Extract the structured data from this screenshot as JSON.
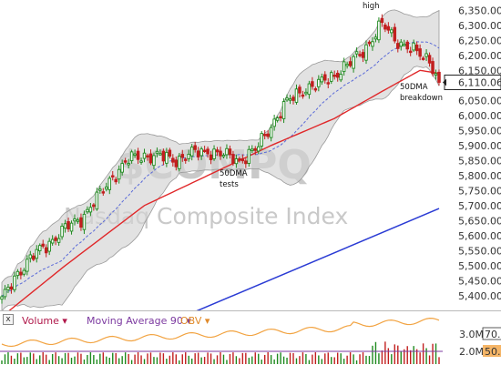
{
  "chart_data": {
    "type": "candlestick",
    "title": "$COMPQ",
    "subtitle": "Nasdaq Composite Index",
    "ylim": [
      5360,
      6360
    ],
    "y_ticks": [
      "6,350.00",
      "6,300.00",
      "6,250.00",
      "6,200.00",
      "6,150.00",
      "6,100.00",
      "6,050.00",
      "6,000.00",
      "5,950.00",
      "5,900.00",
      "5,850.00",
      "5,800.00",
      "5,750.00",
      "5,700.00",
      "5,650.00",
      "5,600.00",
      "5,550.00",
      "5,500.00",
      "5,450.00",
      "5,400.00"
    ],
    "last_price_label": "6,110.06",
    "last_price": 6110.06,
    "annotations": [
      {
        "id": "high",
        "text": "high"
      },
      {
        "id": "tests",
        "lines": [
          "50DMA",
          "tests"
        ]
      },
      {
        "id": "breakdown",
        "lines": [
          "50DMA",
          "breakdown"
        ]
      }
    ],
    "anchors": [
      [
        0,
        5380
      ],
      [
        5,
        5480
      ],
      [
        10,
        5530
      ],
      [
        15,
        5580
      ],
      [
        20,
        5620
      ],
      [
        25,
        5660
      ],
      [
        30,
        5720
      ],
      [
        35,
        5800
      ],
      [
        40,
        5850
      ],
      [
        45,
        5870
      ],
      [
        50,
        5860
      ],
      [
        55,
        5855
      ],
      [
        60,
        5870
      ],
      [
        65,
        5885
      ],
      [
        70,
        5865
      ],
      [
        75,
        5855
      ],
      [
        80,
        5880
      ],
      [
        85,
        5970
      ],
      [
        90,
        6040
      ],
      [
        95,
        6090
      ],
      [
        100,
        6100
      ],
      [
        105,
        6140
      ],
      [
        110,
        6170
      ],
      [
        115,
        6230
      ],
      [
        120,
        6300
      ],
      [
        125,
        6250
      ],
      [
        130,
        6210
      ],
      [
        135,
        6190
      ],
      [
        138,
        6110.06
      ]
    ],
    "ma20_ends": [
      5460,
      6230
    ],
    "ma50": [
      [
        0,
        5330
      ],
      [
        20,
        5500
      ],
      [
        45,
        5700
      ],
      [
        65,
        5800
      ],
      [
        85,
        5900
      ],
      [
        105,
        5990
      ],
      [
        120,
        6080
      ],
      [
        132,
        6150
      ],
      [
        138,
        6140
      ]
    ],
    "ma200": [
      [
        55,
        5320
      ],
      [
        138,
        5690
      ]
    ],
    "colors": {
      "up": "#1f8a1f",
      "down": "#c21f1f",
      "ma50": "#e0282a",
      "ma200": "#2a3bd4",
      "ma20": "#5a6ad8",
      "band": "#d3d3d3",
      "obv": "#f2a341",
      "ma90": "#7c3aa0"
    }
  },
  "indicator_panel": {
    "close_button": "x",
    "items": [
      "Volume",
      "Moving Average 90",
      "OBV"
    ],
    "right_ticks": [
      "3.0M",
      "2.0M"
    ],
    "right_values": [
      "70.0",
      "50.0"
    ]
  }
}
